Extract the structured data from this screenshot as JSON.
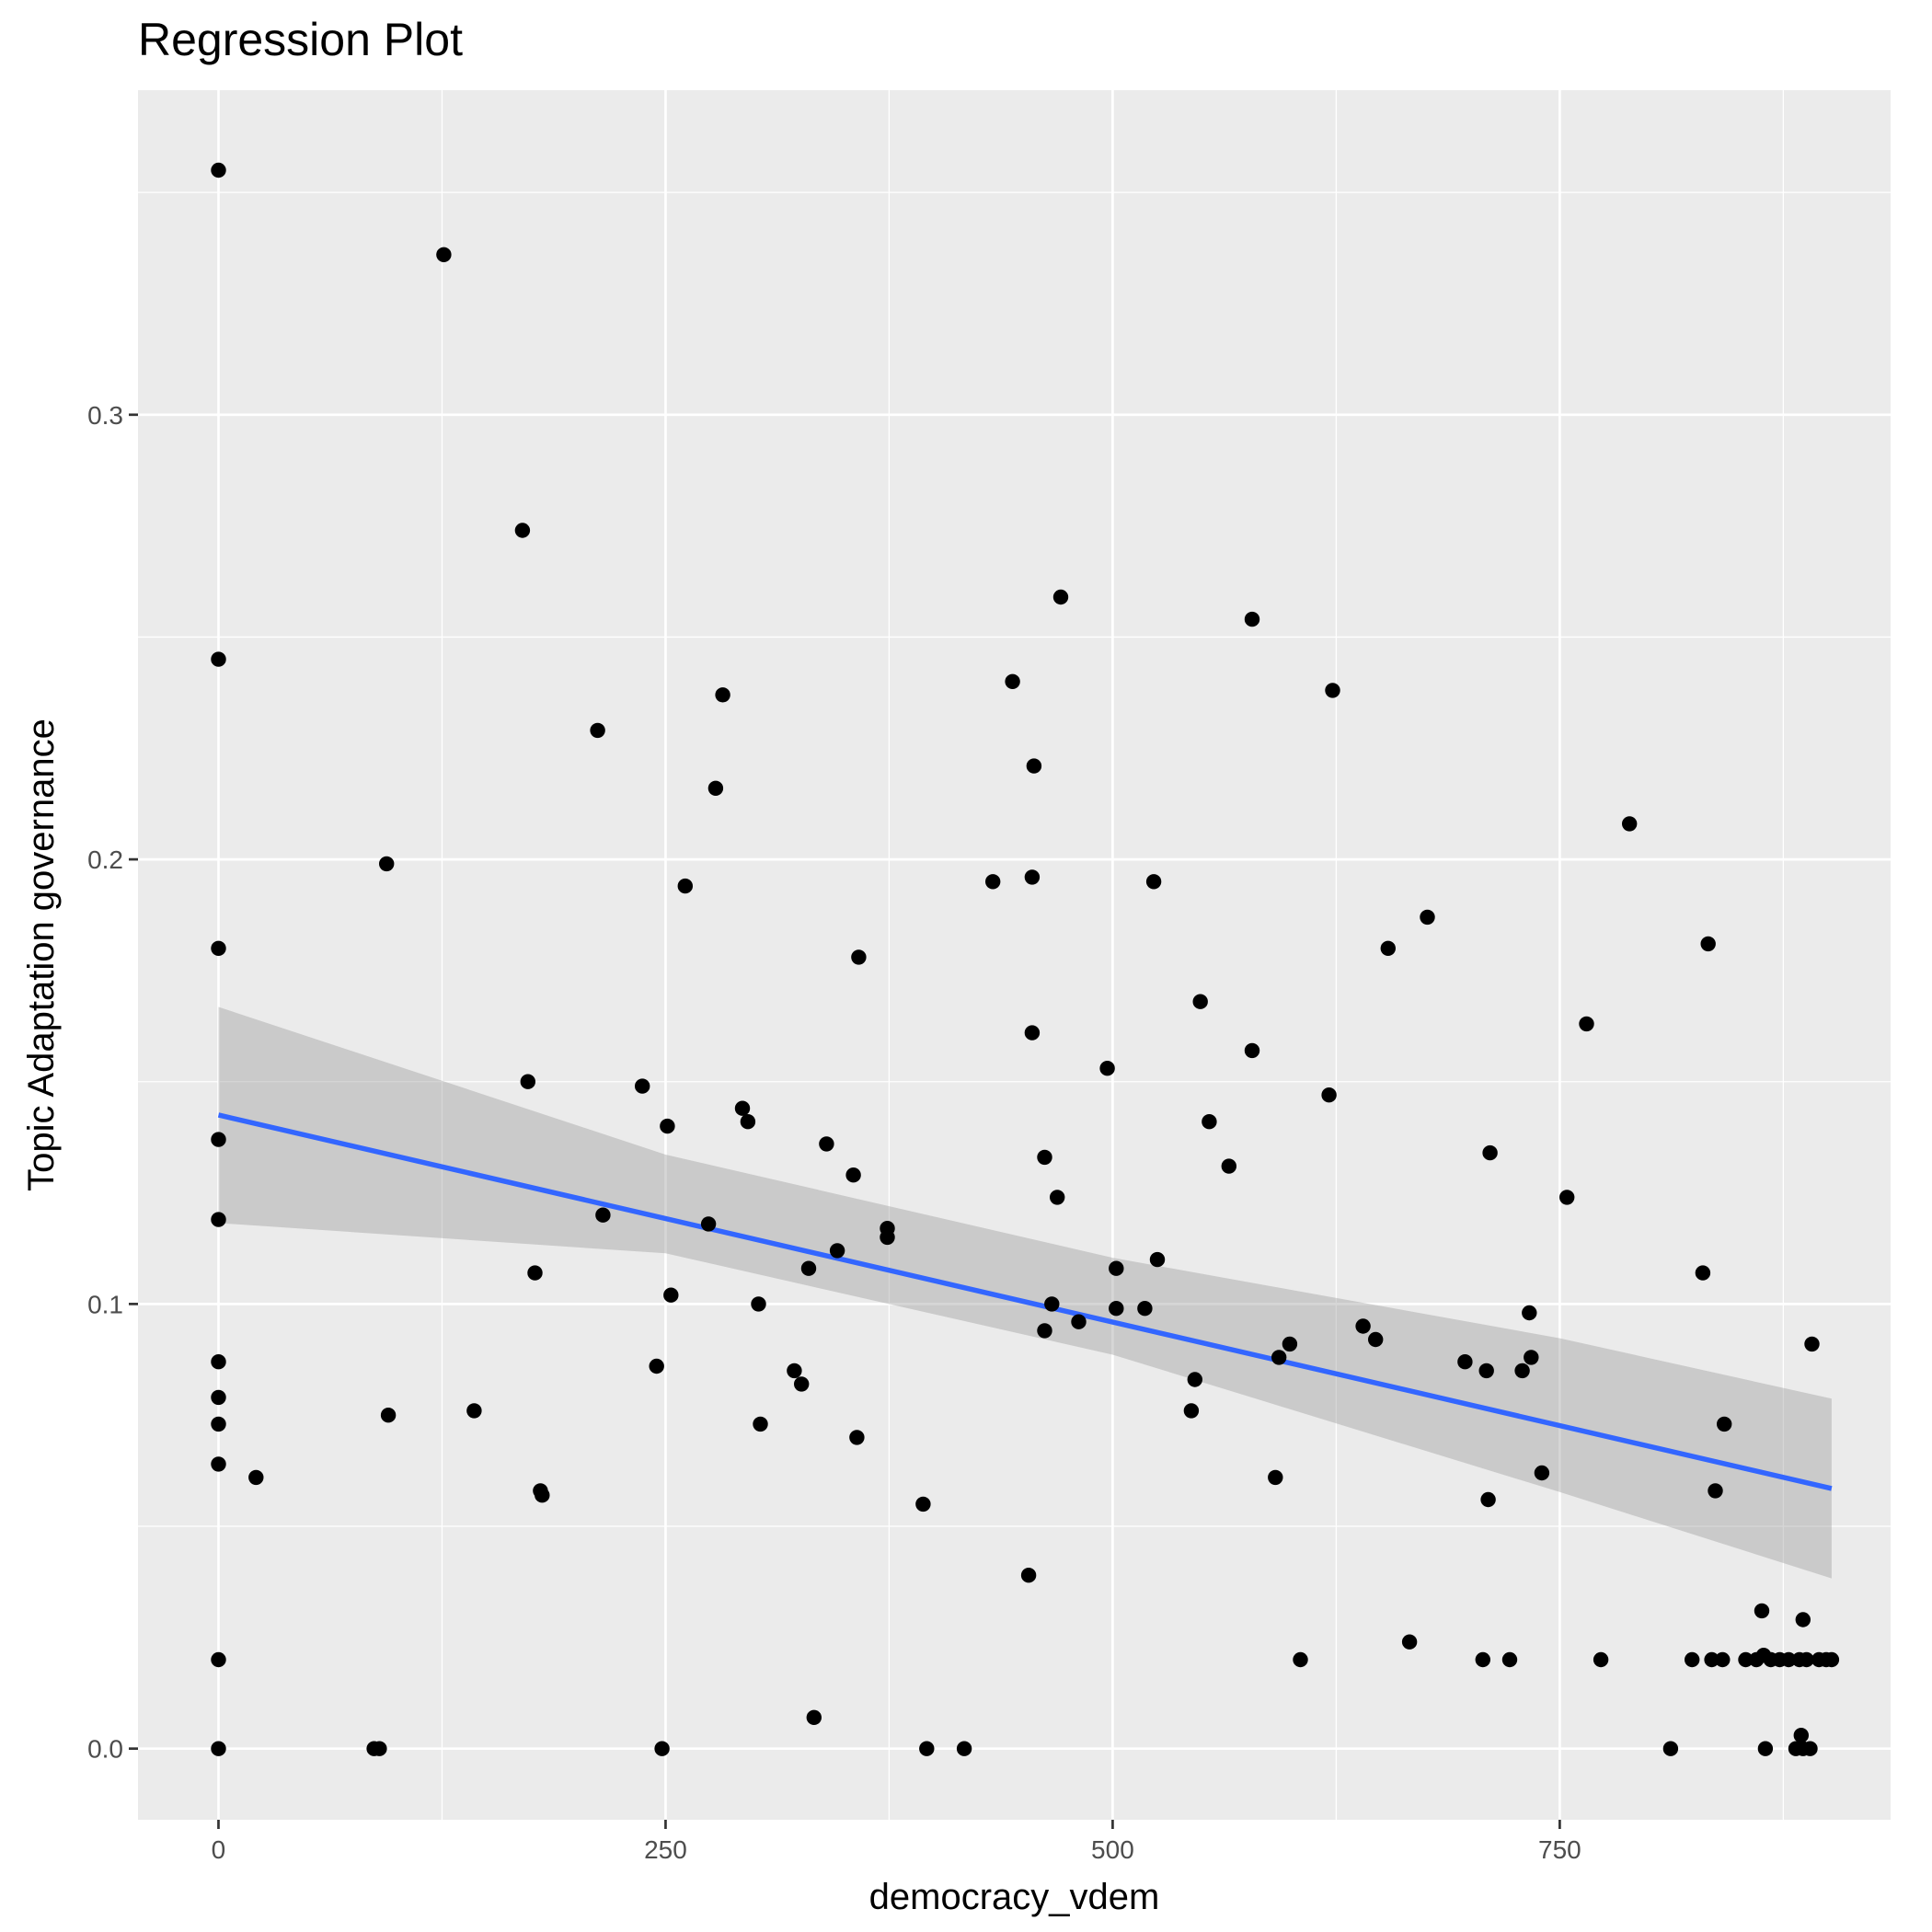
{
  "chart_data": {
    "type": "scatter",
    "title": "Regression Plot",
    "xlabel": "democracy_vdem",
    "ylabel": "Topic Adaptation governance",
    "xlim": [
      -45,
      935
    ],
    "ylim": [
      -0.016,
      0.373
    ],
    "x_ticks": [
      0,
      250,
      500,
      750
    ],
    "x_tick_labels": [
      "0",
      "250",
      "500",
      "750"
    ],
    "y_ticks": [
      0.0,
      0.1,
      0.2,
      0.3
    ],
    "y_tick_labels": [
      "0.0",
      "0.1",
      "0.2",
      "0.3"
    ],
    "x_minor": [
      125,
      375,
      625,
      875
    ],
    "y_minor": [
      0.05,
      0.15,
      0.25,
      0.35
    ],
    "grid": true,
    "colors": {
      "panel": "#ebebeb",
      "grid": "#ffffff",
      "points": "#000000",
      "fit_line": "#3366ff",
      "confidence_band": "#999999"
    },
    "fit": {
      "x": [
        0,
        902
      ],
      "y": [
        0.1425,
        0.0585
      ],
      "band_x": [
        0,
        250,
        500,
        750,
        902
      ],
      "band_upper": [
        0.1668,
        0.1336,
        0.1104,
        0.0923,
        0.0787
      ],
      "band_lower": [
        0.1182,
        0.1114,
        0.0886,
        0.0577,
        0.0383
      ]
    },
    "points": [
      [
        0,
        0.355
      ],
      [
        0,
        0.245
      ],
      [
        0,
        0.18
      ],
      [
        0,
        0.137
      ],
      [
        0,
        0.119
      ],
      [
        0,
        0.087
      ],
      [
        0,
        0.079
      ],
      [
        0,
        0.073
      ],
      [
        0,
        0.064
      ],
      [
        0,
        0.02
      ],
      [
        0,
        0.0
      ],
      [
        21,
        0.061
      ],
      [
        87,
        0.0
      ],
      [
        90,
        0.0
      ],
      [
        94,
        0.199
      ],
      [
        95,
        0.075
      ],
      [
        126,
        0.336
      ],
      [
        143,
        0.076
      ],
      [
        170,
        0.274
      ],
      [
        173,
        0.15
      ],
      [
        177,
        0.107
      ],
      [
        180,
        0.058
      ],
      [
        181,
        0.057
      ],
      [
        212,
        0.229
      ],
      [
        215,
        0.12
      ],
      [
        237,
        0.149
      ],
      [
        245,
        0.086
      ],
      [
        248,
        0.0
      ],
      [
        251,
        0.14
      ],
      [
        253,
        0.102
      ],
      [
        261,
        0.194
      ],
      [
        274,
        0.118
      ],
      [
        278,
        0.216
      ],
      [
        282,
        0.237
      ],
      [
        293,
        0.144
      ],
      [
        296,
        0.141
      ],
      [
        302,
        0.1
      ],
      [
        303,
        0.073
      ],
      [
        322,
        0.085
      ],
      [
        326,
        0.082
      ],
      [
        330,
        0.108
      ],
      [
        333,
        0.007
      ],
      [
        340,
        0.136
      ],
      [
        346,
        0.112
      ],
      [
        355,
        0.129
      ],
      [
        357,
        0.07
      ],
      [
        358,
        0.178
      ],
      [
        374,
        0.117
      ],
      [
        374,
        0.115
      ],
      [
        394,
        0.055
      ],
      [
        396,
        0.0
      ],
      [
        417,
        0.0
      ],
      [
        433,
        0.195
      ],
      [
        444,
        0.24
      ],
      [
        453,
        0.039
      ],
      [
        455,
        0.161
      ],
      [
        455,
        0.196
      ],
      [
        456,
        0.221
      ],
      [
        462,
        0.133
      ],
      [
        462,
        0.094
      ],
      [
        466,
        0.1
      ],
      [
        469,
        0.124
      ],
      [
        471,
        0.259
      ],
      [
        481,
        0.096
      ],
      [
        497,
        0.153
      ],
      [
        502,
        0.108
      ],
      [
        502,
        0.099
      ],
      [
        518,
        0.099
      ],
      [
        523,
        0.195
      ],
      [
        525,
        0.11
      ],
      [
        544,
        0.076
      ],
      [
        546,
        0.083
      ],
      [
        549,
        0.168
      ],
      [
        554,
        0.141
      ],
      [
        565,
        0.131
      ],
      [
        578,
        0.157
      ],
      [
        578,
        0.254
      ],
      [
        591,
        0.061
      ],
      [
        593,
        0.088
      ],
      [
        599,
        0.091
      ],
      [
        605,
        0.02
      ],
      [
        621,
        0.147
      ],
      [
        623,
        0.238
      ],
      [
        640,
        0.095
      ],
      [
        647,
        0.092
      ],
      [
        654,
        0.18
      ],
      [
        666,
        0.024
      ],
      [
        676,
        0.187
      ],
      [
        697,
        0.087
      ],
      [
        707,
        0.02
      ],
      [
        709,
        0.085
      ],
      [
        710,
        0.056
      ],
      [
        711,
        0.134
      ],
      [
        722,
        0.02
      ],
      [
        729,
        0.085
      ],
      [
        733,
        0.098
      ],
      [
        734,
        0.088
      ],
      [
        740,
        0.062
      ],
      [
        754,
        0.124
      ],
      [
        765,
        0.163
      ],
      [
        773,
        0.02
      ],
      [
        789,
        0.208
      ],
      [
        812,
        0.0
      ],
      [
        824,
        0.02
      ],
      [
        830,
        0.107
      ],
      [
        833,
        0.181
      ],
      [
        835,
        0.02
      ],
      [
        837,
        0.058
      ],
      [
        841,
        0.02
      ],
      [
        842,
        0.073
      ],
      [
        854,
        0.02
      ],
      [
        860,
        0.02
      ],
      [
        863,
        0.031
      ],
      [
        864,
        0.021
      ],
      [
        865,
        0.0
      ],
      [
        868,
        0.02
      ],
      [
        873,
        0.02
      ],
      [
        878,
        0.02
      ],
      [
        882,
        0.0
      ],
      [
        884,
        0.02
      ],
      [
        885,
        0.003
      ],
      [
        886,
        0.0
      ],
      [
        886,
        0.029
      ],
      [
        888,
        0.02
      ],
      [
        890,
        0.0
      ],
      [
        891,
        0.091
      ],
      [
        895,
        0.02
      ],
      [
        899,
        0.02
      ],
      [
        902,
        0.02
      ]
    ]
  }
}
